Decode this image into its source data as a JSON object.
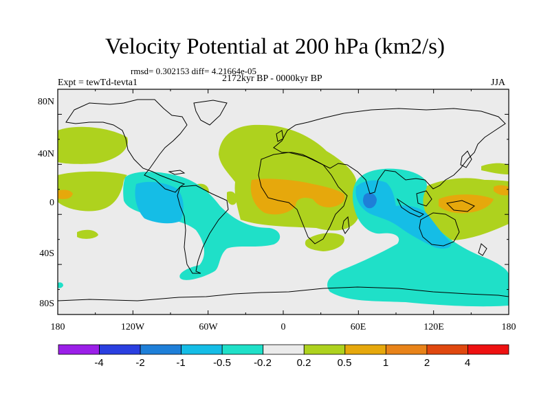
{
  "title": "Velocity Potential at 200 hPa (km2/s)",
  "stats": "rmsd= 0.302153 diff= 4.21664e-05",
  "period": "2172kyr BP - 0000kyr BP",
  "experiment": "Expt = tewTd-tevta1",
  "season": "JJA",
  "lat_labels": [
    "80N",
    "40N",
    "0",
    "40S",
    "80S"
  ],
  "lon_labels": [
    "180",
    "120W",
    "60W",
    "0",
    "60E",
    "120E",
    "180"
  ],
  "colorbar": {
    "colors": [
      "#9b1fe8",
      "#2a3fe0",
      "#1e7fd8",
      "#15bde6",
      "#1fe0c8",
      "#ebebeb",
      "#aed21e",
      "#e6a80c",
      "#e88319",
      "#e0480f",
      "#ee1111"
    ],
    "labels": [
      "-4",
      "-2",
      "-1",
      "-0.5",
      "-0.2",
      "0.2",
      "0.5",
      "1",
      "2",
      "4"
    ]
  },
  "map_colors": {
    "background": "#ebebeb",
    "neg_weak": "#1fe0c8",
    "neg_mid": "#15bde6",
    "neg_strong": "#1e7fd8",
    "pos_weak": "#aed21e",
    "pos_mid": "#e6a80c"
  }
}
